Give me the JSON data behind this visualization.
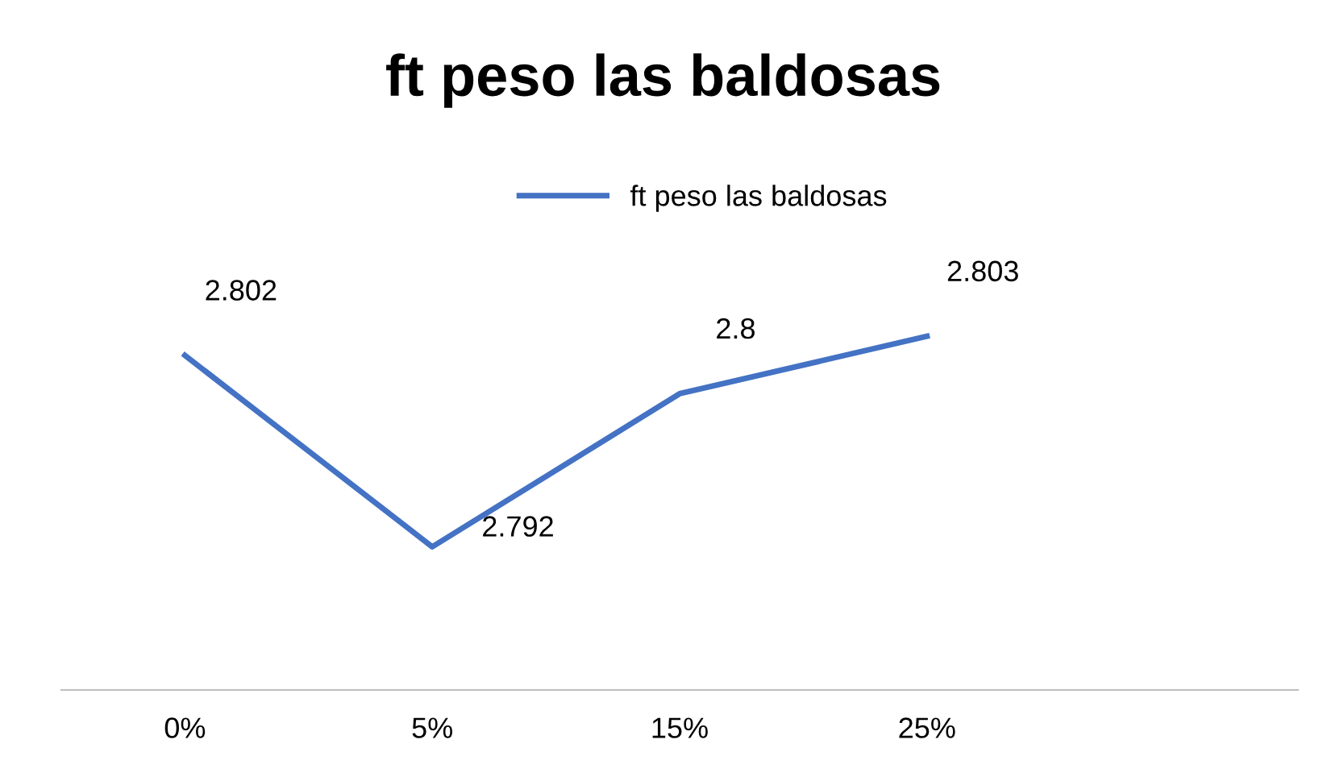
{
  "chart_data": {
    "type": "line",
    "title": "ft peso las baldosas",
    "categories": [
      "0%",
      "5%",
      "15%",
      "25%",
      null
    ],
    "series": [
      {
        "name": "ft peso las baldosas",
        "color": "#4472c4",
        "values": [
          2.802,
          2.792,
          2.8,
          2.803,
          null
        ]
      }
    ],
    "relative": false,
    "data_labels": true,
    "legend": "top",
    "grid": false,
    "marker": "none",
    "line_style": "solid"
  }
}
